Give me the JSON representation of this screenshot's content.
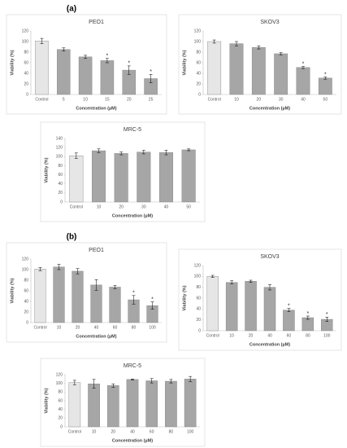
{
  "panel_labels": [
    "(a)",
    "(b)"
  ],
  "chart_data": [
    {
      "type": "bar",
      "title": "PEO1",
      "x_label": "Concentration (µM)",
      "y_label": "Viability (%)",
      "categories": [
        "Control",
        "5",
        "10",
        "15",
        "20",
        "25"
      ],
      "values": [
        101,
        85,
        71,
        64,
        46,
        30
      ],
      "errors": [
        5,
        3,
        3,
        4,
        8,
        8
      ],
      "markers": [
        null,
        null,
        null,
        "*",
        "*",
        "*"
      ],
      "colors": [
        "#e6e6e6",
        "#a6a6a6",
        "#a6a6a6",
        "#a6a6a6",
        "#a6a6a6",
        "#a6a6a6"
      ],
      "ylim": [
        0,
        120
      ],
      "yticks": [
        0,
        20,
        40,
        60,
        80,
        100,
        120
      ]
    },
    {
      "type": "bar",
      "title": "SKOV3",
      "x_label": "Concentration (µM)",
      "y_label": "Viability (%)",
      "categories": [
        "Control",
        "10",
        "20",
        "30",
        "40",
        "50"
      ],
      "values": [
        100,
        96,
        89,
        77,
        51,
        31
      ],
      "errors": [
        3,
        4,
        3,
        2,
        2,
        2
      ],
      "markers": [
        null,
        null,
        null,
        null,
        "*",
        "*"
      ],
      "colors": [
        "#e6e6e6",
        "#a6a6a6",
        "#a6a6a6",
        "#a6a6a6",
        "#a6a6a6",
        "#a6a6a6"
      ],
      "ylim": [
        0,
        120
      ],
      "yticks": [
        0,
        20,
        40,
        60,
        80,
        100,
        120
      ]
    },
    {
      "type": "bar",
      "title": "MRC-5",
      "x_label": "Concentration (µM)",
      "y_label": "Viability (%)",
      "categories": [
        "Control",
        "10",
        "20",
        "30",
        "40",
        "50"
      ],
      "values": [
        102,
        113,
        107,
        110,
        109,
        115
      ],
      "errors": [
        6,
        4,
        3,
        4,
        5,
        2
      ],
      "markers": [
        null,
        null,
        null,
        null,
        null,
        null
      ],
      "colors": [
        "#e6e6e6",
        "#a6a6a6",
        "#a6a6a6",
        "#a6a6a6",
        "#a6a6a6",
        "#a6a6a6"
      ],
      "ylim": [
        0,
        140
      ],
      "yticks": [
        0,
        20,
        40,
        60,
        80,
        100,
        120,
        140
      ]
    },
    {
      "type": "bar",
      "title": "PEO1",
      "x_label": "Concentration (µM)",
      "y_label": "Viability (%)",
      "categories": [
        "Control",
        "10",
        "20",
        "40",
        "60",
        "80",
        "100"
      ],
      "values": [
        101,
        105,
        97,
        71,
        67,
        43,
        32
      ],
      "errors": [
        3,
        5,
        5,
        10,
        3,
        8,
        7
      ],
      "markers": [
        null,
        null,
        null,
        null,
        null,
        "*",
        "*"
      ],
      "colors": [
        "#e6e6e6",
        "#a6a6a6",
        "#a6a6a6",
        "#a6a6a6",
        "#a6a6a6",
        "#a6a6a6",
        "#a6a6a6"
      ],
      "ylim": [
        0,
        120
      ],
      "yticks": [
        0,
        20,
        40,
        60,
        80,
        100,
        120
      ]
    },
    {
      "type": "bar",
      "title": "SKOV3",
      "x_label": "Concentration (µM)",
      "y_label": "Viability (%)",
      "categories": [
        "Control",
        "10",
        "20",
        "40",
        "60",
        "80",
        "100"
      ],
      "values": [
        100,
        89,
        91,
        80,
        38,
        24,
        21
      ],
      "errors": [
        2,
        3,
        2,
        5,
        3,
        3,
        4
      ],
      "markers": [
        null,
        null,
        null,
        null,
        "*",
        "*",
        "*"
      ],
      "colors": [
        "#e6e6e6",
        "#a6a6a6",
        "#a6a6a6",
        "#a6a6a6",
        "#a6a6a6",
        "#a6a6a6",
        "#a6a6a6"
      ],
      "ylim": [
        0,
        120
      ],
      "yticks": [
        0,
        20,
        40,
        60,
        80,
        100,
        120
      ]
    },
    {
      "type": "bar",
      "title": "MRC-5",
      "x_label": "Concentration (µM)",
      "y_label": "Viability (%)",
      "categories": [
        "Control",
        "10",
        "20",
        "40",
        "60",
        "80",
        "100"
      ],
      "values": [
        102,
        99,
        95,
        109,
        106,
        105,
        110
      ],
      "errors": [
        5,
        10,
        4,
        1,
        5,
        4,
        6
      ],
      "markers": [
        null,
        null,
        null,
        null,
        null,
        null,
        null
      ],
      "colors": [
        "#e6e6e6",
        "#a6a6a6",
        "#a6a6a6",
        "#a6a6a6",
        "#a6a6a6",
        "#a6a6a6",
        "#a6a6a6"
      ],
      "ylim": [
        0,
        120
      ],
      "yticks": [
        0,
        20,
        40,
        60,
        80,
        100,
        120
      ]
    }
  ]
}
